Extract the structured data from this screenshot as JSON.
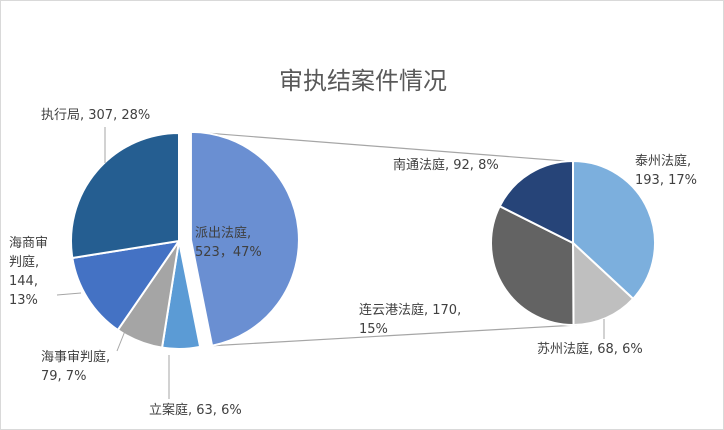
{
  "chart_data": {
    "type": "pie",
    "subtype": "pie-of-pie",
    "title": "审执结案件情况",
    "legend": "none",
    "primary": [
      {
        "name": "派出法庭",
        "value": 523,
        "percent": "47%",
        "label_lines": [
          "派出法庭,",
          "523，47%"
        ],
        "color": "#6a8fd2"
      },
      {
        "name": "立案庭",
        "value": 63,
        "percent": "6%",
        "label_lines": [
          "立案庭, 63, 6%"
        ],
        "color": "#5b9bd5"
      },
      {
        "name": "海事审判庭",
        "value": 79,
        "percent": "7%",
        "label_lines": [
          "海事审判庭,",
          "79, 7%"
        ],
        "color": "#a5a5a5"
      },
      {
        "name": "海商审判庭",
        "value": 144,
        "percent": "13%",
        "label_lines": [
          "海商审",
          "判庭,",
          "144,",
          "13%"
        ],
        "color": "#4472c4"
      },
      {
        "name": "执行局",
        "value": 307,
        "percent": "28%",
        "label_lines": [
          "执行局, 307, 28%"
        ],
        "color": "#255e91"
      }
    ],
    "secondary": [
      {
        "name": "泰州法庭",
        "value": 193,
        "percent": "17%",
        "label_lines": [
          "泰州法庭,",
          "193, 17%"
        ],
        "color": "#7cafdd"
      },
      {
        "name": "苏州法庭",
        "value": 68,
        "percent": "6%",
        "label_lines": [
          "苏州法庭, 68, 6%"
        ],
        "color": "#bfbfbf"
      },
      {
        "name": "连云港法庭",
        "value": 170,
        "percent": "15%",
        "label_lines": [
          "连云港法庭, 170,",
          "15%"
        ],
        "color": "#636363"
      },
      {
        "name": "南通法庭",
        "value": 92,
        "percent": "8%",
        "label_lines": [
          "南通法庭, 92, 8%"
        ],
        "color": "#264478"
      }
    ]
  }
}
